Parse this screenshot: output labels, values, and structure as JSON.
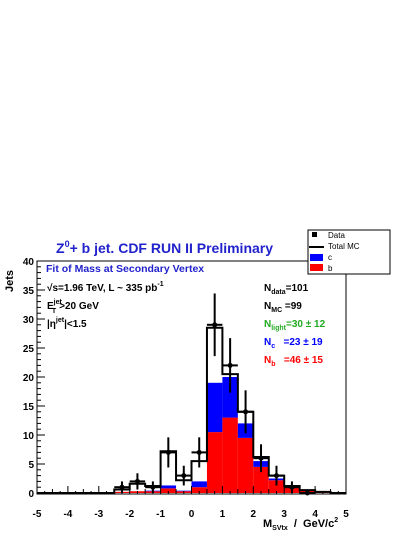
{
  "chart_data": {
    "type": "bar",
    "title": "Z0+ b jet. CDF RUN II Preliminary",
    "title_parts": {
      "a": "Z",
      "a_sup": "0",
      "b": "+ b jet. CDF RUN II Preliminary"
    },
    "title_color": "#2222cc",
    "subtitle": "Fit of Mass at Secondary Vertex",
    "ylabel": "Jets",
    "xlabel_parts": {
      "main": "M",
      "sub": "SVtx",
      "unit": "  /  GeV/c",
      "unit_sup": "2"
    },
    "xlim": [
      -5,
      5
    ],
    "ylim": [
      0,
      40
    ],
    "x_ticks": [
      "-5",
      "-4",
      "-3",
      "-2",
      "-1",
      "0",
      "1",
      "2",
      "3",
      "4",
      "5"
    ],
    "y_ticks": [
      "0",
      "5",
      "10",
      "15",
      "20",
      "25",
      "30",
      "35",
      "40"
    ],
    "bin_width": 0.5,
    "bins_left_edge": [
      -5,
      -4.5,
      -4,
      -3.5,
      -3,
      -2.5,
      -2,
      -1.5,
      -1,
      -0.5,
      0,
      0.5,
      1,
      1.5,
      2,
      2.5,
      3,
      3.5,
      4,
      4.5
    ],
    "series": [
      {
        "name": "b",
        "color": "#ff0000",
        "values": [
          0,
          0,
          0,
          0,
          0,
          0.2,
          0.3,
          0.3,
          0.8,
          0.3,
          1.0,
          10.5,
          13.0,
          9.5,
          4.5,
          2.2,
          1.0,
          0.5,
          0.2,
          0
        ]
      },
      {
        "name": "c",
        "color": "#0000ff",
        "values": [
          0,
          0,
          0,
          0,
          0,
          0,
          0,
          0.1,
          0.5,
          0.1,
          1.0,
          8.5,
          7.0,
          2.5,
          1.0,
          0.3,
          0.2,
          0,
          0,
          0
        ]
      },
      {
        "name": "Total MC",
        "color": "#000000",
        "values": [
          0,
          0,
          0,
          0,
          0,
          0.6,
          1.6,
          1.2,
          7.2,
          2.2,
          5.5,
          28.5,
          20.5,
          14.0,
          6.2,
          3.0,
          1.2,
          0.5,
          0.2,
          0
        ]
      }
    ],
    "data_points": {
      "name": "Data",
      "x": [
        -2.25,
        -1.75,
        -1.25,
        -0.75,
        -0.25,
        0.25,
        0.75,
        1.25,
        1.75,
        2.25,
        2.75,
        3.25,
        3.75
      ],
      "y": [
        1,
        2,
        1,
        7,
        3,
        7,
        29,
        22,
        14,
        6,
        3,
        1,
        0
      ],
      "y_err": [
        1.0,
        1.4,
        1.0,
        2.6,
        1.7,
        2.6,
        5.4,
        4.7,
        3.7,
        2.4,
        1.7,
        1.0,
        0.5
      ]
    },
    "legend": {
      "placement": "top-right",
      "entries": [
        {
          "label": "Data",
          "kind": "marker"
        },
        {
          "label": "Total MC",
          "kind": "line"
        },
        {
          "label": "c",
          "kind": "fill",
          "color": "#0000ff"
        },
        {
          "label": "b",
          "kind": "fill",
          "color": "#ff0000"
        }
      ]
    },
    "annotations_left": [
      {
        "id": "sqrt",
        "pre": "√",
        "text": "s=1.96 TeV, L ~ 335 pb",
        "sup": "-1"
      },
      {
        "id": "et",
        "text": "E",
        "sub": "T",
        "sup": "jet",
        "post": ">20 GeV"
      },
      {
        "id": "eta",
        "text": "|η",
        "sup": "jet",
        "post": "|<1.5"
      }
    ],
    "annotations_right": [
      {
        "id": "ndata",
        "base": "N",
        "sub": "data",
        "post": "=101",
        "color": "#000000"
      },
      {
        "id": "nmc",
        "base": "N",
        "sub": "MC",
        "post": " =99",
        "color": "#000000"
      },
      {
        "id": "nlight",
        "base": "N",
        "sub": "light",
        "post": "=30 ± 12",
        "color": "#22aa22"
      },
      {
        "id": "nc",
        "base": "N",
        "sub": "c",
        "post": "   =23 ± 19",
        "color": "#0000ff"
      },
      {
        "id": "nb",
        "base": "N",
        "sub": "b",
        "post": "   =46 ± 15",
        "color": "#ff0000"
      }
    ]
  }
}
